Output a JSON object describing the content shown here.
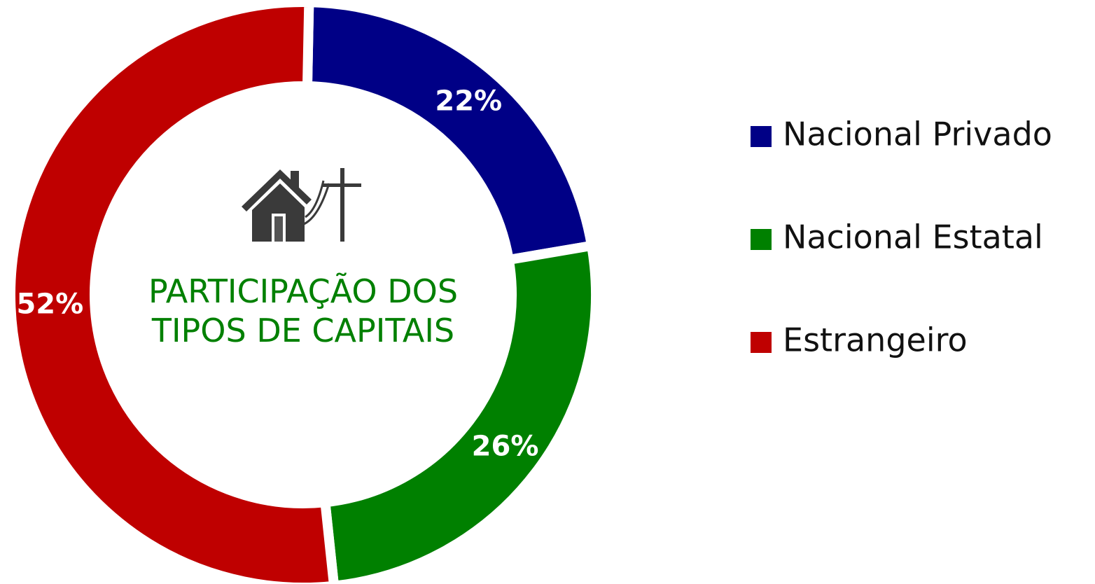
{
  "chart_data": {
    "type": "donut",
    "title": "PARTICIPAÇÃO DOS TIPOS DE CAPITAIS",
    "categories": [
      "Nacional Privado",
      "Nacional Estatal",
      "Estrangeiro"
    ],
    "values": [
      22,
      26,
      52
    ],
    "value_labels": [
      "22%",
      "26%",
      "52%"
    ],
    "colors": [
      "#000086",
      "#008000",
      "#bf0000"
    ],
    "legend": "right"
  }
}
